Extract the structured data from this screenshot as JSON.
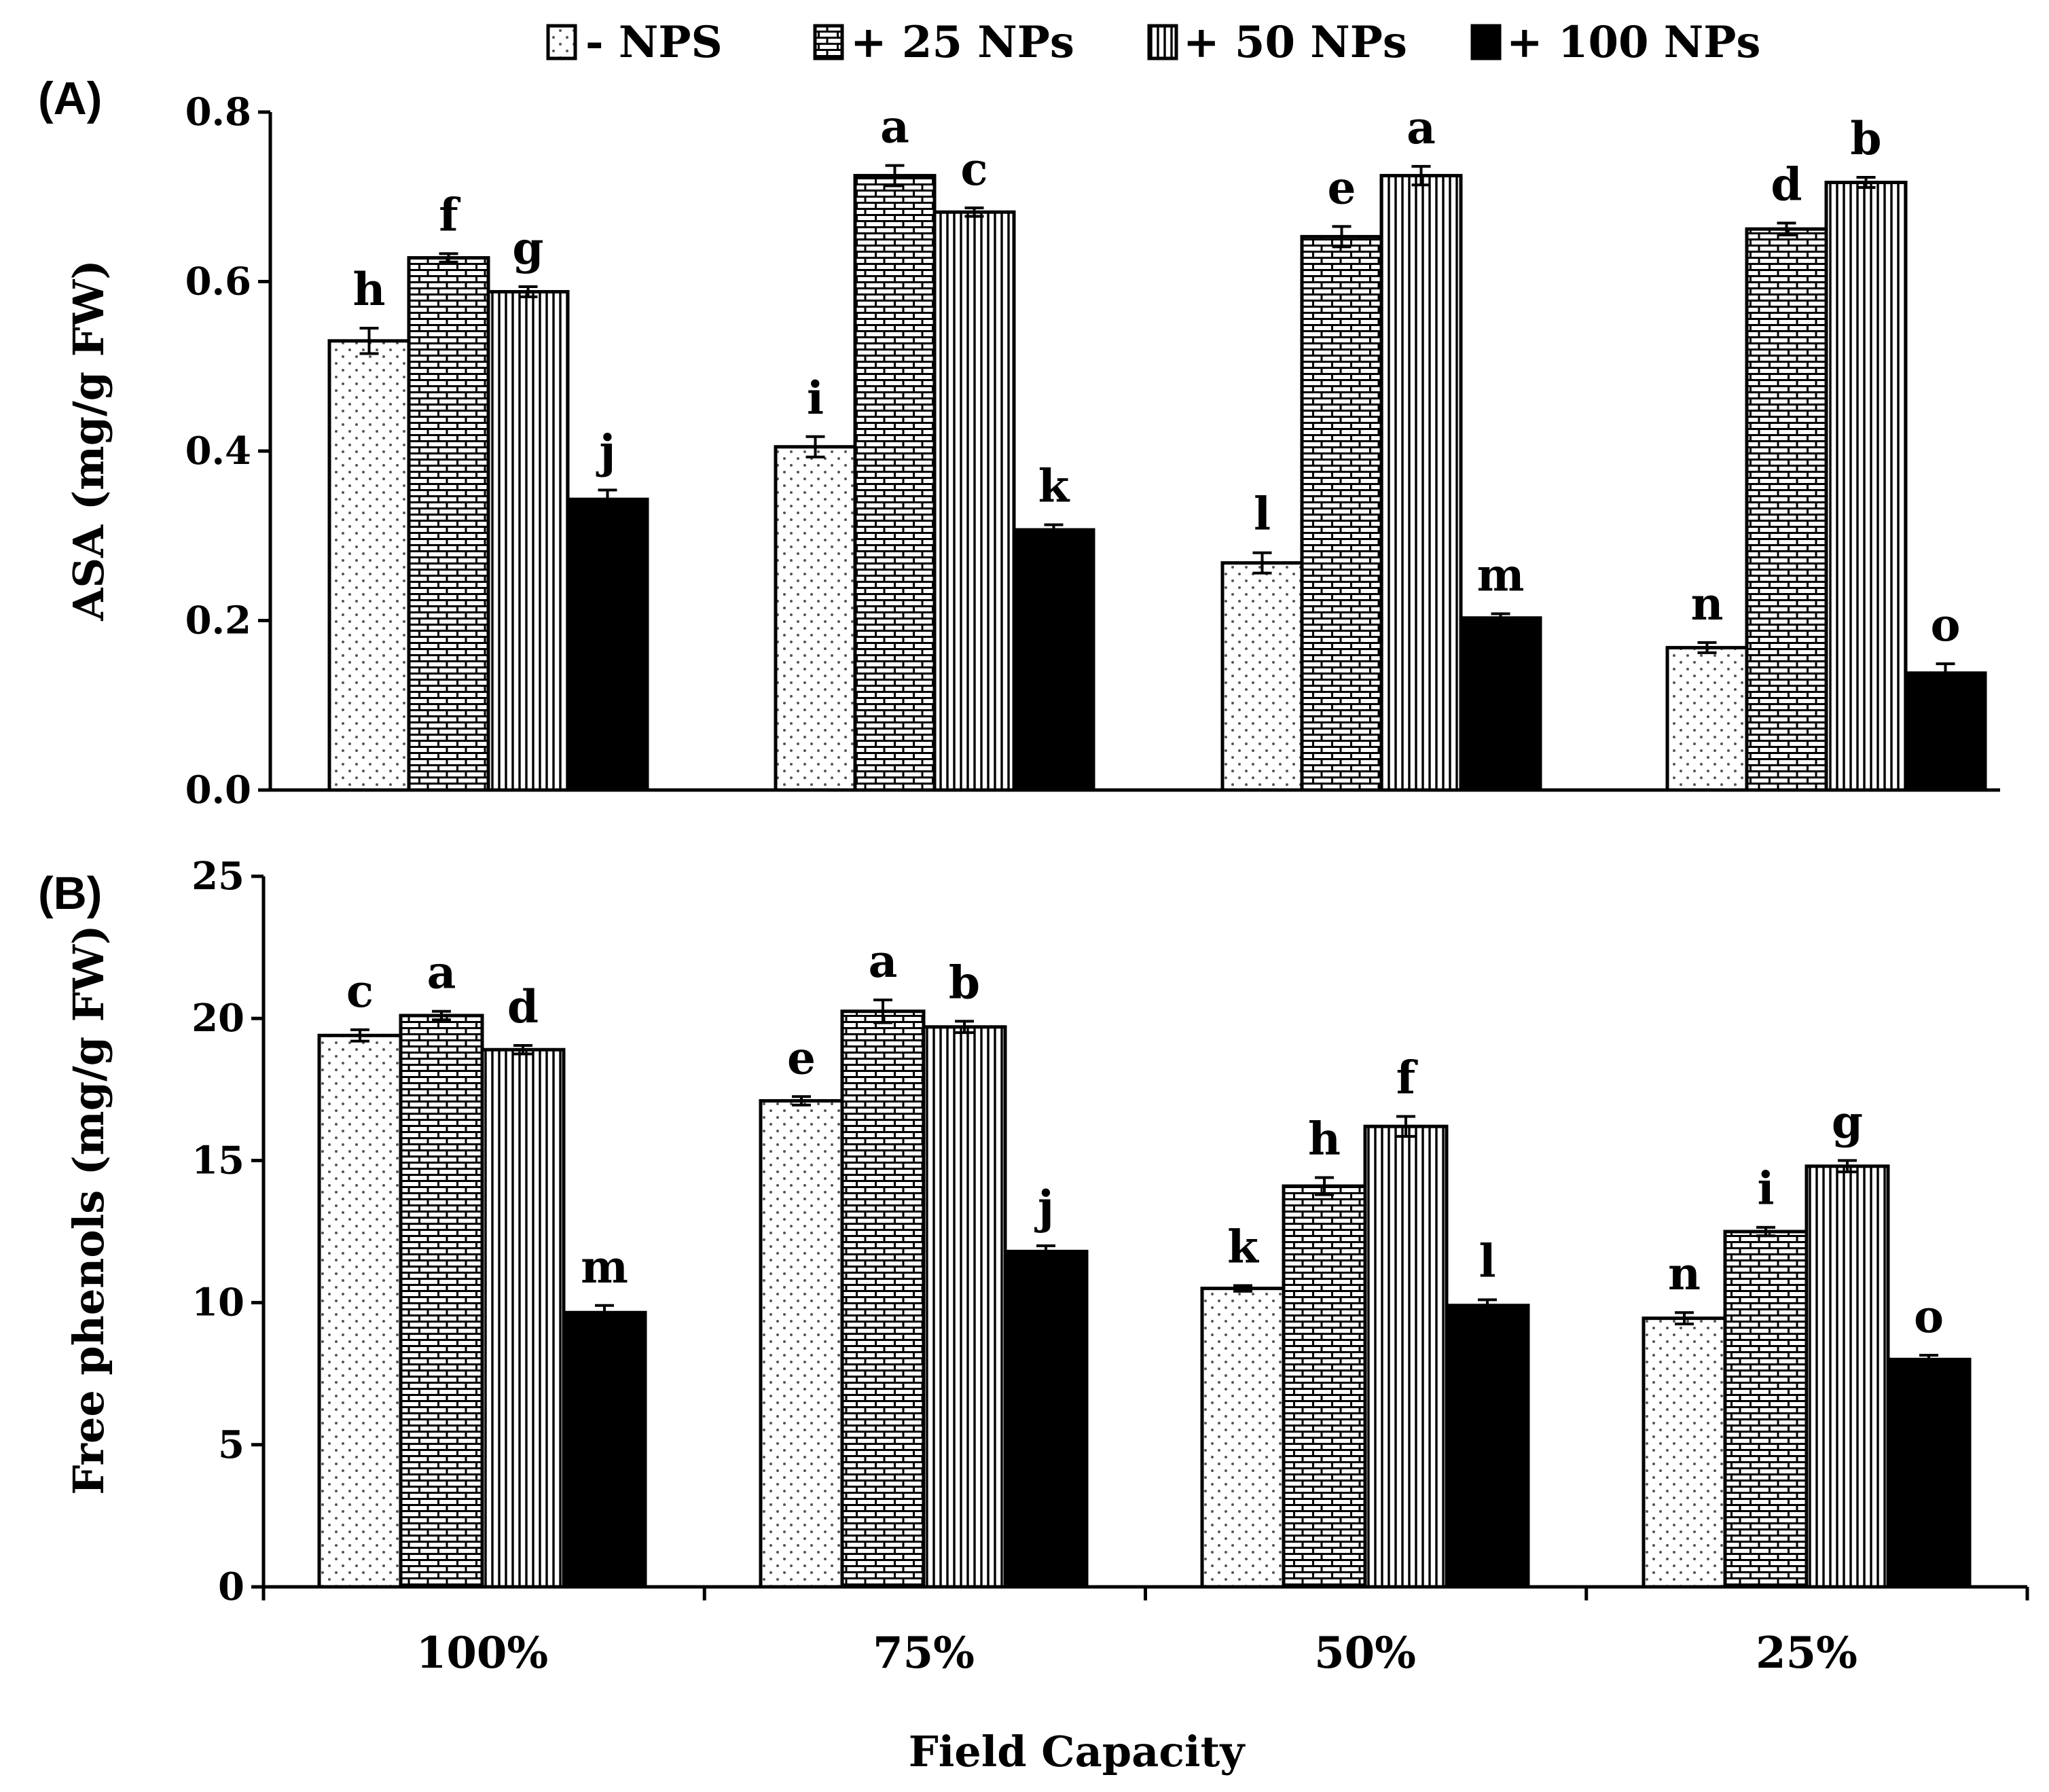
{
  "legend": [
    {
      "label": "- NPS",
      "pattern": "dots"
    },
    {
      "label": "+ 25 NPs",
      "pattern": "bricks"
    },
    {
      "label": "+ 50 NPs",
      "pattern": "vlines"
    },
    {
      "label": "+ 100 NPs",
      "pattern": "solid"
    }
  ],
  "x_title": "Field Capacity",
  "chart_data": [
    {
      "type": "bar",
      "panel": "(A)",
      "title": "",
      "xlabel": "Field Capacity",
      "ylabel": "ASA  (mg/g FW)",
      "ylim": [
        0,
        0.8
      ],
      "yticks": [
        "0.0",
        "0.2",
        "0.4",
        "0.6",
        "0.8"
      ],
      "categories": [
        "100%",
        "75%",
        "50%",
        "25%"
      ],
      "series": [
        {
          "name": "- NPS",
          "values": [
            0.53,
            0.405,
            0.268,
            0.168
          ],
          "errors": [
            0.015,
            0.012,
            0.012,
            0.006
          ],
          "letters": [
            "h",
            "i",
            "l",
            "n"
          ]
        },
        {
          "name": "+ 25 NPs",
          "values": [
            0.628,
            0.725,
            0.653,
            0.662
          ],
          "errors": [
            0.005,
            0.012,
            0.012,
            0.007
          ],
          "letters": [
            "f",
            "a",
            "e",
            "d"
          ]
        },
        {
          "name": "+ 50 NPs",
          "values": [
            0.588,
            0.682,
            0.725,
            0.717
          ],
          "errors": [
            0.006,
            0.005,
            0.011,
            0.006
          ],
          "letters": [
            "g",
            "c",
            "a",
            "b"
          ]
        },
        {
          "name": "+ 100 NPs",
          "values": [
            0.343,
            0.307,
            0.203,
            0.138
          ],
          "errors": [
            0.011,
            0.006,
            0.005,
            0.011
          ],
          "letters": [
            "j",
            "k",
            "m",
            "o"
          ]
        }
      ]
    },
    {
      "type": "bar",
      "panel": "(B)",
      "title": "",
      "xlabel": "Field Capacity",
      "ylabel": "Free phenols  (mg/g FW)",
      "ylim": [
        0,
        25
      ],
      "yticks": [
        "0",
        "5",
        "10",
        "15",
        "20",
        "25"
      ],
      "categories": [
        "100%",
        "75%",
        "50%",
        "25%"
      ],
      "series": [
        {
          "name": "- NPS",
          "values": [
            19.4,
            17.1,
            10.5,
            9.45
          ],
          "errors": [
            0.2,
            0.15,
            0.1,
            0.2
          ],
          "letters": [
            "c",
            "e",
            "k",
            "n"
          ]
        },
        {
          "name": "+ 25 NPs",
          "values": [
            20.1,
            20.25,
            14.1,
            12.5
          ],
          "errors": [
            0.15,
            0.4,
            0.3,
            0.15
          ],
          "letters": [
            "a",
            "a",
            "h",
            "i"
          ]
        },
        {
          "name": "+ 50 NPs",
          "values": [
            18.9,
            19.7,
            16.2,
            14.8
          ],
          "errors": [
            0.15,
            0.2,
            0.35,
            0.2
          ],
          "letters": [
            "d",
            "b",
            "f",
            "g"
          ]
        },
        {
          "name": "+ 100 NPs",
          "values": [
            9.65,
            11.8,
            9.9,
            8.0
          ],
          "errors": [
            0.25,
            0.2,
            0.2,
            0.15
          ],
          "letters": [
            "m",
            "j",
            "l",
            "o"
          ]
        }
      ]
    }
  ]
}
